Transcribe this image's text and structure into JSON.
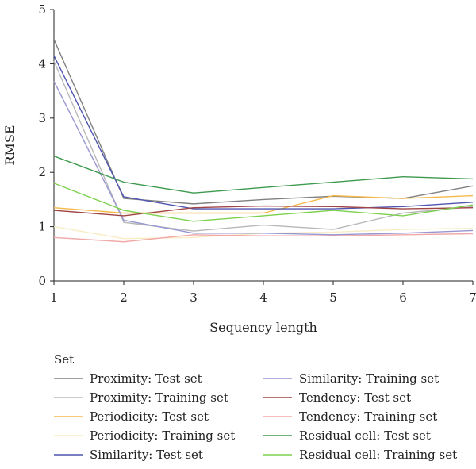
{
  "chart_data": {
    "type": "line",
    "xlabel": "Sequency length",
    "ylabel": "RMSE",
    "x": [
      1,
      2,
      3,
      4,
      5,
      6,
      7
    ],
    "xlim": [
      1,
      7
    ],
    "ylim": [
      0,
      5
    ],
    "xticks": [
      "1",
      "2",
      "3",
      "4",
      "5",
      "6",
      "7"
    ],
    "yticks": [
      "0",
      "1",
      "2",
      "3",
      "4",
      "5"
    ],
    "grid": false,
    "legend": {
      "title": "Set",
      "placement": "bottom"
    },
    "series": [
      {
        "name": "Proximity: Test set",
        "color": "#808080",
        "values": [
          4.45,
          1.52,
          1.42,
          1.5,
          1.56,
          1.52,
          1.75
        ]
      },
      {
        "name": "Proximity: Training set",
        "color": "#b8b8b8",
        "values": [
          4.05,
          1.08,
          0.92,
          1.03,
          0.95,
          1.25,
          1.37
        ]
      },
      {
        "name": "Periodicity: Test set",
        "color": "#f5b94a",
        "values": [
          1.35,
          1.25,
          1.25,
          1.25,
          1.57,
          1.52,
          1.57
        ]
      },
      {
        "name": "Periodicity: Training set",
        "color": "#f7edc4",
        "values": [
          1.0,
          0.78,
          0.8,
          0.88,
          0.9,
          0.95,
          0.97
        ]
      },
      {
        "name": "Similarity: Test set",
        "color": "#4f55b0",
        "values": [
          4.15,
          1.55,
          1.33,
          1.33,
          1.33,
          1.37,
          1.45
        ]
      },
      {
        "name": "Similarity: Training set",
        "color": "#9696d2",
        "values": [
          3.68,
          1.12,
          0.88,
          0.88,
          0.85,
          0.88,
          0.93
        ]
      },
      {
        "name": "Tendency: Test set",
        "color": "#a04444",
        "values": [
          1.3,
          1.2,
          1.35,
          1.38,
          1.37,
          1.33,
          1.35
        ]
      },
      {
        "name": "Tendency: Training set",
        "color": "#f0a8a8",
        "values": [
          0.8,
          0.72,
          0.85,
          0.83,
          0.83,
          0.85,
          0.87
        ]
      },
      {
        "name": "Residual cell: Test set",
        "color": "#3e9a4e",
        "values": [
          2.3,
          1.82,
          1.62,
          1.72,
          1.82,
          1.92,
          1.88
        ]
      },
      {
        "name": "Residual cell: Training set",
        "color": "#7dd04e",
        "values": [
          1.8,
          1.3,
          1.1,
          1.2,
          1.3,
          1.2,
          1.4
        ]
      }
    ]
  }
}
